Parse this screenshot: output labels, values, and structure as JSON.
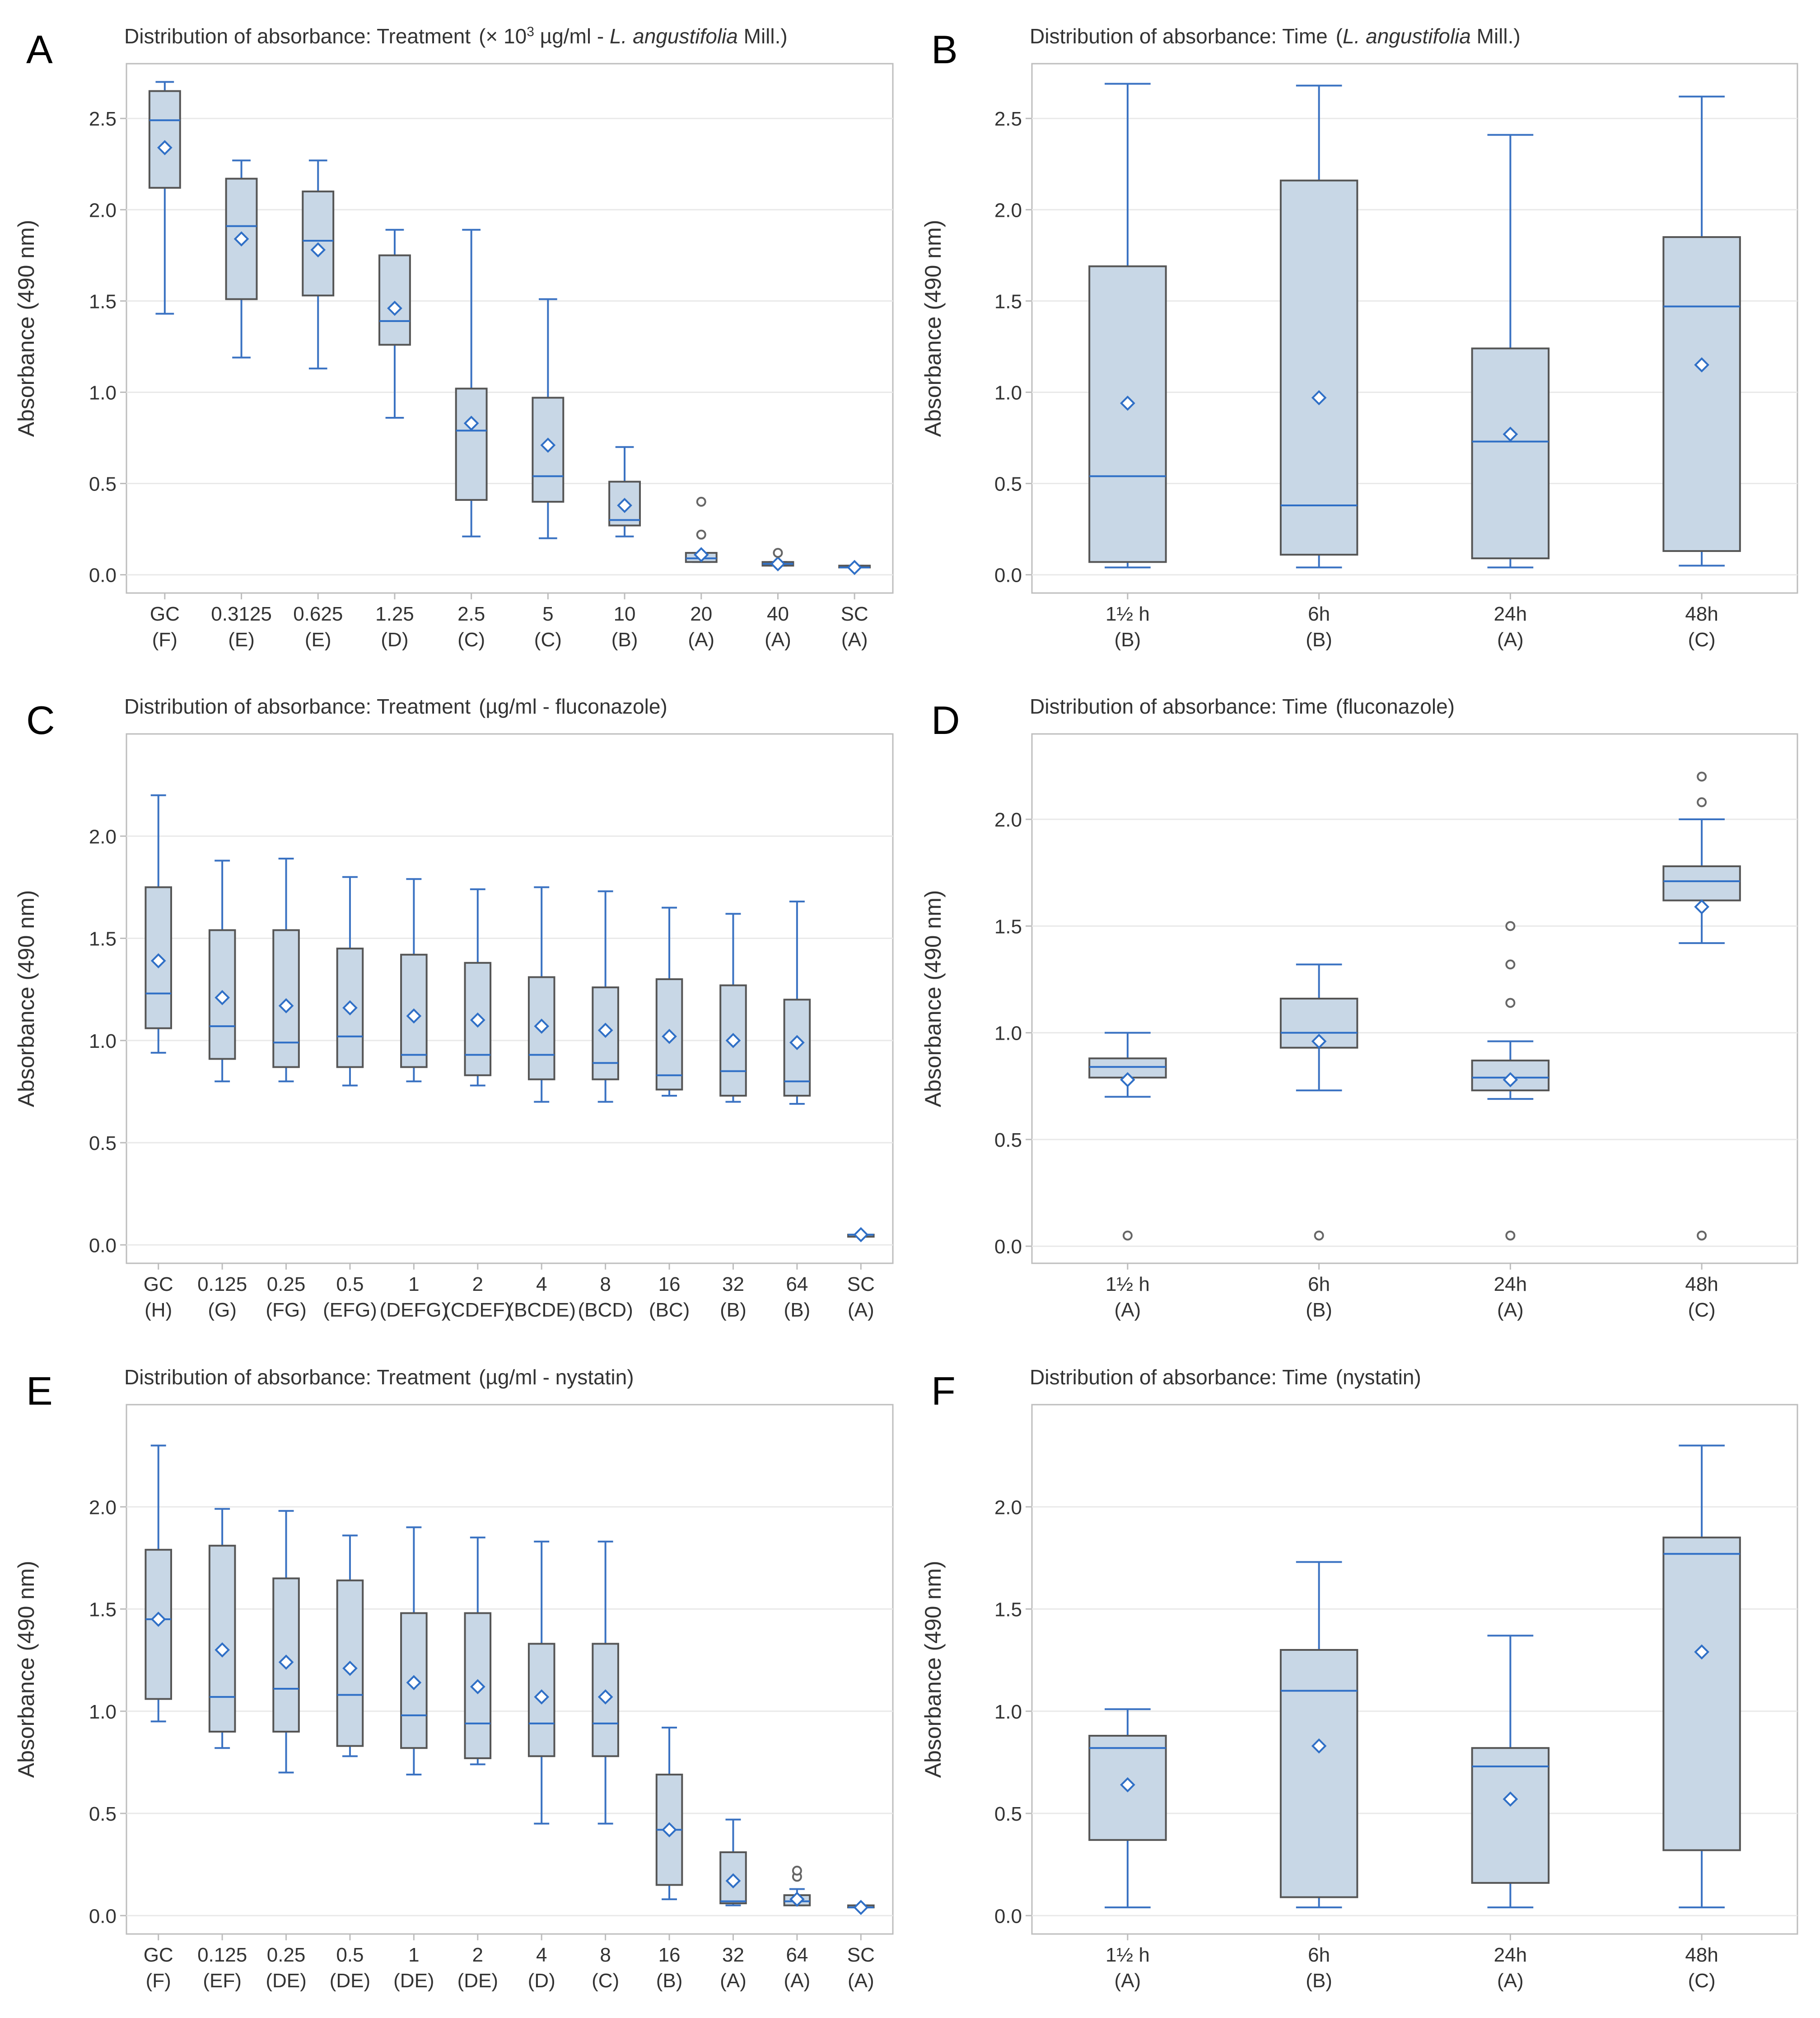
{
  "figure": {
    "y_axis_label": "Absorbance (490 nm)",
    "colors": {
      "box_fill": "#c8d7e6",
      "box_stroke": "#555555",
      "median": "#2f6fc6",
      "whisker": "#3a72c2",
      "mean_marker": "#2f6fc6",
      "gridline": "#e9e9e9",
      "frame": "#bdbdbd",
      "text": "#333333",
      "panel_letter": "#000000",
      "outlier": "#666666"
    }
  },
  "chart_data": [
    {
      "panel": "A",
      "type": "boxplot",
      "title": "Distribution of absorbance: Treatment",
      "title_suffix_html": "(× 10<tspan baseline-shift=\"super\" font-size=\"30\">3</tspan> µg/ml - <tspan font-style=\"italic\">L. angustifolia</tspan> Mill.)",
      "ylabel": "Absorbance (490 nm)",
      "ylim": [
        -0.1,
        2.8
      ],
      "yticks": [
        "0.0",
        "0.5",
        "1.0",
        "1.5",
        "2.0",
        "2.5"
      ],
      "categories": [
        "GC",
        "0.3125",
        "0.625",
        "1.25",
        "2.5",
        "5",
        "10",
        "20",
        "40",
        "SC"
      ],
      "groups": [
        "(F)",
        "(E)",
        "(E)",
        "(D)",
        "(C)",
        "(C)",
        "(B)",
        "(A)",
        "(A)",
        "(A)"
      ],
      "boxes": [
        {
          "min": 1.43,
          "q1": 2.12,
          "median": 2.49,
          "q3": 2.65,
          "max": 2.7,
          "mean": 2.34,
          "outliers": []
        },
        {
          "min": 1.19,
          "q1": 1.51,
          "median": 1.91,
          "q3": 2.17,
          "max": 2.27,
          "mean": 1.84,
          "outliers": []
        },
        {
          "min": 1.13,
          "q1": 1.53,
          "median": 1.83,
          "q3": 2.1,
          "max": 2.27,
          "mean": 1.78,
          "outliers": []
        },
        {
          "min": 0.86,
          "q1": 1.26,
          "median": 1.39,
          "q3": 1.75,
          "max": 1.89,
          "mean": 1.46,
          "outliers": []
        },
        {
          "min": 0.21,
          "q1": 0.41,
          "median": 0.79,
          "q3": 1.02,
          "max": 1.89,
          "mean": 0.83,
          "outliers": []
        },
        {
          "min": 0.2,
          "q1": 0.4,
          "median": 0.54,
          "q3": 0.97,
          "max": 1.51,
          "mean": 0.71,
          "outliers": []
        },
        {
          "min": 0.21,
          "q1": 0.27,
          "median": 0.3,
          "q3": 0.51,
          "max": 0.7,
          "mean": 0.38,
          "outliers": []
        },
        {
          "min": 0.07,
          "q1": 0.07,
          "median": 0.09,
          "q3": 0.12,
          "max": 0.12,
          "mean": 0.11,
          "outliers": [
            0.22,
            0.4
          ]
        },
        {
          "min": 0.05,
          "q1": 0.05,
          "median": 0.06,
          "q3": 0.07,
          "max": 0.07,
          "mean": 0.06,
          "outliers": [
            0.12
          ]
        },
        {
          "min": 0.04,
          "q1": 0.04,
          "median": 0.04,
          "q3": 0.05,
          "max": 0.05,
          "mean": 0.04,
          "outliers": []
        }
      ]
    },
    {
      "panel": "B",
      "type": "boxplot",
      "title": "Distribution of absorbance: Time",
      "title_suffix_html": "(<tspan font-style=\"italic\">L. angustifolia</tspan> Mill.)",
      "ylabel": "Absorbance (490 nm)",
      "ylim": [
        -0.1,
        2.8
      ],
      "yticks": [
        "0.0",
        "0.5",
        "1.0",
        "1.5",
        "2.0",
        "2.5"
      ],
      "categories": [
        "1½ h",
        "6h",
        "24h",
        "48h"
      ],
      "groups": [
        "(B)",
        "(B)",
        "(A)",
        "(C)"
      ],
      "boxes": [
        {
          "min": 0.04,
          "q1": 0.07,
          "median": 0.54,
          "q3": 1.69,
          "max": 2.69,
          "mean": 0.94,
          "outliers": []
        },
        {
          "min": 0.04,
          "q1": 0.11,
          "median": 0.38,
          "q3": 2.16,
          "max": 2.68,
          "mean": 0.97,
          "outliers": []
        },
        {
          "min": 0.04,
          "q1": 0.09,
          "median": 0.73,
          "q3": 1.24,
          "max": 2.41,
          "mean": 0.77,
          "outliers": []
        },
        {
          "min": 0.05,
          "q1": 0.13,
          "median": 1.47,
          "q3": 1.85,
          "max": 2.62,
          "mean": 1.15,
          "outliers": []
        }
      ]
    },
    {
      "panel": "C",
      "type": "boxplot",
      "title": "Distribution of absorbance: Treatment",
      "title_suffix_html": "(µg/ml - fluconazole)",
      "ylabel": "Absorbance (490 nm)",
      "ylim": [
        -0.09,
        2.5
      ],
      "yticks": [
        "0.0",
        "0.5",
        "1.0",
        "1.5",
        "2.0"
      ],
      "categories": [
        "GC",
        "0.125",
        "0.25",
        "0.5",
        "1",
        "2",
        "4",
        "8",
        "16",
        "32",
        "64",
        "SC"
      ],
      "groups": [
        "(H)",
        "(G)",
        "(FG)",
        "(EFG)",
        "(DEFG)",
        "(CDEF)",
        "(BCDE)",
        "(BCD)",
        "(BC)",
        "(B)",
        "(B)",
        "(A)"
      ],
      "boxes": [
        {
          "min": 0.94,
          "q1": 1.06,
          "median": 1.23,
          "q3": 1.75,
          "max": 2.2,
          "mean": 1.39,
          "outliers": []
        },
        {
          "min": 0.8,
          "q1": 0.91,
          "median": 1.07,
          "q3": 1.54,
          "max": 1.88,
          "mean": 1.21,
          "outliers": []
        },
        {
          "min": 0.8,
          "q1": 0.87,
          "median": 0.99,
          "q3": 1.54,
          "max": 1.89,
          "mean": 1.17,
          "outliers": []
        },
        {
          "min": 0.78,
          "q1": 0.87,
          "median": 1.02,
          "q3": 1.45,
          "max": 1.8,
          "mean": 1.16,
          "outliers": []
        },
        {
          "min": 0.8,
          "q1": 0.87,
          "median": 0.93,
          "q3": 1.42,
          "max": 1.79,
          "mean": 1.12,
          "outliers": []
        },
        {
          "min": 0.78,
          "q1": 0.83,
          "median": 0.93,
          "q3": 1.38,
          "max": 1.74,
          "mean": 1.1,
          "outliers": []
        },
        {
          "min": 0.7,
          "q1": 0.81,
          "median": 0.93,
          "q3": 1.31,
          "max": 1.75,
          "mean": 1.07,
          "outliers": []
        },
        {
          "min": 0.7,
          "q1": 0.81,
          "median": 0.89,
          "q3": 1.26,
          "max": 1.73,
          "mean": 1.05,
          "outliers": []
        },
        {
          "min": 0.73,
          "q1": 0.76,
          "median": 0.83,
          "q3": 1.3,
          "max": 1.65,
          "mean": 1.02,
          "outliers": []
        },
        {
          "min": 0.7,
          "q1": 0.73,
          "median": 0.85,
          "q3": 1.27,
          "max": 1.62,
          "mean": 1.0,
          "outliers": []
        },
        {
          "min": 0.69,
          "q1": 0.73,
          "median": 0.8,
          "q3": 1.2,
          "max": 1.68,
          "mean": 0.99,
          "outliers": []
        },
        {
          "min": 0.04,
          "q1": 0.04,
          "median": 0.05,
          "q3": 0.05,
          "max": 0.05,
          "mean": 0.05,
          "outliers": []
        }
      ]
    },
    {
      "panel": "D",
      "type": "boxplot",
      "title": "Distribution of absorbance: Time",
      "title_suffix_html": "(fluconazole)",
      "ylabel": "Absorbance (490 nm)",
      "ylim": [
        -0.08,
        2.4
      ],
      "yticks": [
        "0.0",
        "0.5",
        "1.0",
        "1.5",
        "2.0"
      ],
      "categories": [
        "1½ h",
        "6h",
        "24h",
        "48h"
      ],
      "groups": [
        "(A)",
        "(B)",
        "(A)",
        "(C)"
      ],
      "boxes": [
        {
          "min": 0.7,
          "q1": 0.79,
          "median": 0.84,
          "q3": 0.88,
          "max": 1.0,
          "mean": 0.78,
          "outliers": [
            0.05
          ]
        },
        {
          "min": 0.73,
          "q1": 0.93,
          "median": 1.0,
          "q3": 1.16,
          "max": 1.32,
          "mean": 0.96,
          "outliers": [
            0.05
          ]
        },
        {
          "min": 0.69,
          "q1": 0.73,
          "median": 0.79,
          "q3": 0.87,
          "max": 0.96,
          "mean": 0.78,
          "outliers": [
            0.05,
            1.14,
            1.32,
            1.5
          ]
        },
        {
          "min": 1.42,
          "q1": 1.62,
          "median": 1.71,
          "q3": 1.78,
          "max": 2.0,
          "mean": 1.59,
          "outliers": [
            0.05,
            2.08,
            2.2
          ]
        }
      ]
    },
    {
      "panel": "E",
      "type": "boxplot",
      "title": "Distribution of absorbance: Treatment",
      "title_suffix_html": "(µg/ml - nystatin)",
      "ylabel": "Absorbance (490 nm)",
      "ylim": [
        -0.09,
        2.5
      ],
      "yticks": [
        "0.0",
        "0.5",
        "1.0",
        "1.5",
        "2.0"
      ],
      "categories": [
        "GC",
        "0.125",
        "0.25",
        "0.5",
        "1",
        "2",
        "4",
        "8",
        "16",
        "32",
        "64",
        "SC"
      ],
      "groups": [
        "(F)",
        "(EF)",
        "(DE)",
        "(DE)",
        "(DE)",
        "(DE)",
        "(D)",
        "(C)",
        "(B)",
        "(A)",
        "(A)",
        "(A)"
      ],
      "boxes": [
        {
          "min": 0.95,
          "q1": 1.06,
          "median": 1.45,
          "q3": 1.79,
          "max": 2.3,
          "mean": 1.45,
          "outliers": []
        },
        {
          "min": 0.82,
          "q1": 0.9,
          "median": 1.07,
          "q3": 1.81,
          "max": 1.99,
          "mean": 1.3,
          "outliers": []
        },
        {
          "min": 0.7,
          "q1": 0.9,
          "median": 1.11,
          "q3": 1.65,
          "max": 1.98,
          "mean": 1.24,
          "outliers": []
        },
        {
          "min": 0.78,
          "q1": 0.83,
          "median": 1.08,
          "q3": 1.64,
          "max": 1.86,
          "mean": 1.21,
          "outliers": []
        },
        {
          "min": 0.69,
          "q1": 0.82,
          "median": 0.98,
          "q3": 1.48,
          "max": 1.9,
          "mean": 1.14,
          "outliers": []
        },
        {
          "min": 0.74,
          "q1": 0.77,
          "median": 0.94,
          "q3": 1.48,
          "max": 1.85,
          "mean": 1.12,
          "outliers": []
        },
        {
          "min": 0.45,
          "q1": 0.78,
          "median": 0.94,
          "q3": 1.33,
          "max": 1.83,
          "mean": 1.07,
          "outliers": []
        },
        {
          "min": 0.45,
          "q1": 0.78,
          "median": 0.94,
          "q3": 1.33,
          "max": 1.83,
          "mean": 1.07,
          "outliers": []
        },
        {
          "min": 0.08,
          "q1": 0.15,
          "median": 0.42,
          "q3": 0.69,
          "max": 0.92,
          "mean": 0.42,
          "outliers": []
        },
        {
          "min": 0.05,
          "q1": 0.06,
          "median": 0.07,
          "q3": 0.31,
          "max": 0.47,
          "mean": 0.17,
          "outliers": []
        },
        {
          "min": 0.05,
          "q1": 0.05,
          "median": 0.07,
          "q3": 0.1,
          "max": 0.13,
          "mean": 0.08,
          "outliers": [
            0.19,
            0.22
          ]
        },
        {
          "min": 0.04,
          "q1": 0.04,
          "median": 0.04,
          "q3": 0.05,
          "max": 0.05,
          "mean": 0.04,
          "outliers": []
        }
      ]
    },
    {
      "panel": "F",
      "type": "boxplot",
      "title": "Distribution of absorbance: Time",
      "title_suffix_html": "(nystatin)",
      "ylabel": "Absorbance (490 nm)",
      "ylim": [
        -0.09,
        2.5
      ],
      "yticks": [
        "0.0",
        "0.5",
        "1.0",
        "1.5",
        "2.0"
      ],
      "categories": [
        "1½ h",
        "6h",
        "24h",
        "48h"
      ],
      "groups": [
        "(A)",
        "(B)",
        "(A)",
        "(C)"
      ],
      "boxes": [
        {
          "min": 0.04,
          "q1": 0.37,
          "median": 0.82,
          "q3": 0.88,
          "max": 1.01,
          "mean": 0.64,
          "outliers": []
        },
        {
          "min": 0.04,
          "q1": 0.09,
          "median": 1.1,
          "q3": 1.3,
          "max": 1.73,
          "mean": 0.83,
          "outliers": []
        },
        {
          "min": 0.04,
          "q1": 0.16,
          "median": 0.73,
          "q3": 0.82,
          "max": 1.37,
          "mean": 0.57,
          "outliers": []
        },
        {
          "min": 0.04,
          "q1": 0.32,
          "median": 1.77,
          "q3": 1.85,
          "max": 2.3,
          "mean": 1.29,
          "outliers": []
        }
      ]
    }
  ]
}
